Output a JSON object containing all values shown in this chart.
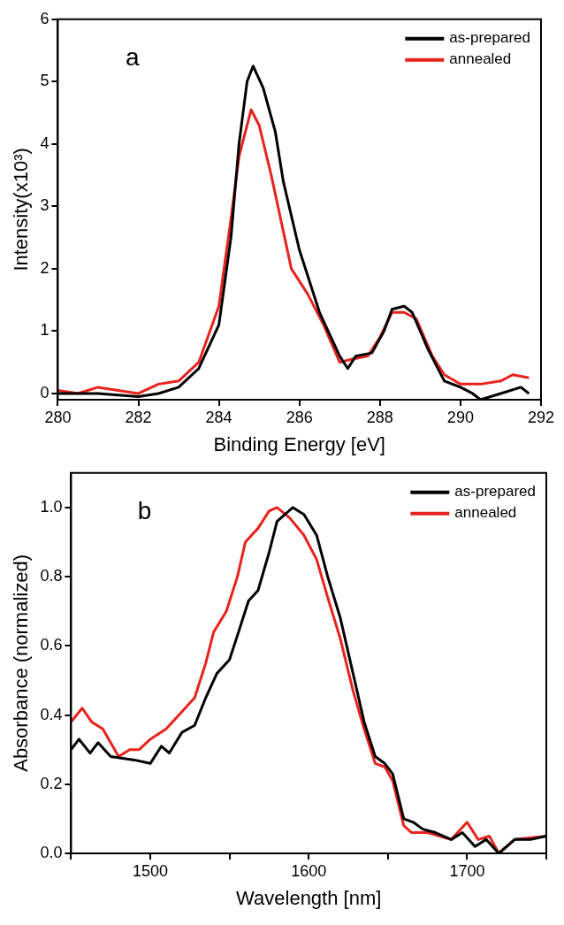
{
  "chart_data": [
    {
      "type": "line",
      "annotations": [
        "a"
      ],
      "xlabel": "Binding Energy [eV]",
      "ylabel": "Intensity(x10³)",
      "xlim": [
        280,
        292
      ],
      "xticks": [
        280,
        282,
        284,
        286,
        288,
        290,
        292
      ],
      "ylim": [
        -0.1,
        6
      ],
      "yticks": [
        0,
        1,
        2,
        3,
        4,
        5,
        6
      ],
      "legend": "top right",
      "grid": false,
      "series": [
        {
          "name": "as-prepared",
          "color": "#000000",
          "x": [
            280,
            281,
            282,
            282.5,
            283,
            283.5,
            284,
            284.3,
            284.5,
            284.7,
            284.85,
            285.1,
            285.4,
            285.6,
            286,
            286.5,
            287,
            287.2,
            287.4,
            287.8,
            288.1,
            288.3,
            288.6,
            288.8,
            289.2,
            289.6,
            290,
            290.3,
            290.5,
            291,
            291.5,
            291.7
          ],
          "values": [
            0,
            0,
            -0.05,
            0,
            0.1,
            0.4,
            1.1,
            2.5,
            4,
            5,
            5.25,
            4.9,
            4.2,
            3.4,
            2.3,
            1.3,
            0.6,
            0.4,
            0.6,
            0.65,
            1,
            1.35,
            1.4,
            1.3,
            0.7,
            0.2,
            0.1,
            0,
            -0.1,
            0,
            0.1,
            0
          ]
        },
        {
          "name": "annealed",
          "color": "#e8231e",
          "x": [
            280,
            280.5,
            281,
            281.5,
            282,
            282.5,
            283,
            283.5,
            284,
            284.3,
            284.5,
            284.8,
            285,
            285.3,
            285.6,
            285.8,
            286.2,
            286.6,
            287,
            287.3,
            287.7,
            288,
            288.3,
            288.6,
            288.9,
            289.3,
            289.6,
            290,
            290.5,
            291,
            291.3,
            291.7
          ],
          "values": [
            0.05,
            0,
            0.1,
            0.05,
            0,
            0.15,
            0.2,
            0.5,
            1.4,
            2.8,
            3.8,
            4.55,
            4.3,
            3.5,
            2.6,
            2,
            1.6,
            1.1,
            0.5,
            0.55,
            0.6,
            0.9,
            1.3,
            1.3,
            1.2,
            0.6,
            0.3,
            0.15,
            0.15,
            0.2,
            0.3,
            0.25
          ]
        }
      ]
    },
    {
      "type": "line",
      "annotations": [
        "b"
      ],
      "xlabel": "Wavelength [nm]",
      "ylabel": "Absorbance (normalized)",
      "xlim": [
        1450,
        1750
      ],
      "xticks": [
        {
          "value": 1450,
          "label": null
        },
        1500,
        {
          "value": 1550,
          "label": null
        },
        1600,
        {
          "value": 1650,
          "label": null
        },
        1700,
        {
          "value": 1750,
          "label": null
        }
      ],
      "ylim": [
        0,
        1.1
      ],
      "yticks": [
        {
          "value": 0,
          "label": "0.0"
        },
        0.2,
        0.4,
        0.6,
        0.8,
        {
          "value": 1,
          "label": "1.0"
        }
      ],
      "legend": "top right",
      "grid": false,
      "series": [
        {
          "name": "as-prepared",
          "color": "#000000",
          "x": [
            1450,
            1455,
            1462,
            1467,
            1475,
            1490,
            1500,
            1507,
            1512,
            1520,
            1528,
            1535,
            1542,
            1550,
            1555,
            1562,
            1568,
            1575,
            1580,
            1585,
            1590,
            1597,
            1605,
            1612,
            1620,
            1628,
            1635,
            1642,
            1648,
            1653,
            1660,
            1666,
            1672,
            1680,
            1690,
            1697,
            1705,
            1712,
            1720,
            1730,
            1740,
            1750
          ],
          "values": [
            0.3,
            0.33,
            0.29,
            0.32,
            0.28,
            0.27,
            0.26,
            0.31,
            0.29,
            0.35,
            0.37,
            0.45,
            0.52,
            0.56,
            0.63,
            0.73,
            0.76,
            0.87,
            0.96,
            0.98,
            1,
            0.98,
            0.92,
            0.8,
            0.68,
            0.52,
            0.38,
            0.28,
            0.26,
            0.23,
            0.1,
            0.09,
            0.07,
            0.06,
            0.04,
            0.06,
            0.02,
            0.04,
            0,
            0.04,
            0.04,
            0.05
          ]
        },
        {
          "name": "annealed",
          "color": "#e8231e",
          "x": [
            1450,
            1457,
            1463,
            1470,
            1480,
            1487,
            1493,
            1500,
            1510,
            1520,
            1528,
            1535,
            1540,
            1548,
            1555,
            1560,
            1568,
            1575,
            1580,
            1588,
            1597,
            1605,
            1612,
            1620,
            1628,
            1635,
            1642,
            1648,
            1653,
            1660,
            1665,
            1675,
            1690,
            1700,
            1707,
            1714,
            1720,
            1730,
            1750
          ],
          "values": [
            0.38,
            0.42,
            0.38,
            0.36,
            0.28,
            0.3,
            0.3,
            0.33,
            0.36,
            0.41,
            0.45,
            0.55,
            0.64,
            0.7,
            0.8,
            0.9,
            0.94,
            0.99,
            1,
            0.97,
            0.92,
            0.85,
            0.74,
            0.62,
            0.47,
            0.36,
            0.26,
            0.25,
            0.21,
            0.08,
            0.06,
            0.06,
            0.04,
            0.09,
            0.04,
            0.05,
            0,
            0.04,
            0.05
          ]
        }
      ]
    }
  ]
}
